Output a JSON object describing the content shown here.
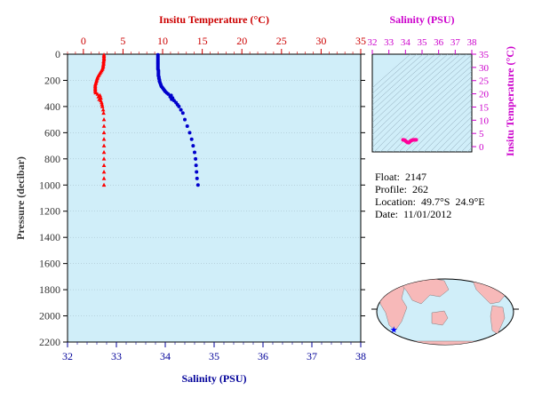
{
  "chart_data": [
    {
      "type": "scatter",
      "top_axis_label": "Insitu Temperature (°C)",
      "bottom_axis_label": "Salinity (PSU)",
      "ylabel": "Pressure (decibar)",
      "temp_ticks": [
        "0",
        "5",
        "10",
        "15",
        "20",
        "25",
        "30",
        "35"
      ],
      "sal_ticks": [
        "32",
        "33",
        "34",
        "35",
        "36",
        "37",
        "38"
      ],
      "pressure_ticks": [
        "0",
        "200",
        "400",
        "600",
        "800",
        "1000",
        "1200",
        "1400",
        "1600",
        "1800",
        "2000",
        "2200"
      ],
      "temp_range": [
        -2,
        35
      ],
      "salinity_range": [
        32,
        38
      ],
      "pressure_range": [
        0,
        2200
      ],
      "colors": {
        "temperature": "#ff0000",
        "salinity": "#0000cc",
        "plot_bg": "#d0eef9",
        "temp_axis": "#cc0000",
        "sal_axis": "#000099",
        "pressure_axis": "#333333"
      },
      "series": [
        {
          "name": "Temperature",
          "marker": "triangle",
          "points": [
            {
              "x": 2.6,
              "y": 5
            },
            {
              "x": 2.6,
              "y": 15
            },
            {
              "x": 2.6,
              "y": 25
            },
            {
              "x": 2.6,
              "y": 35
            },
            {
              "x": 2.6,
              "y": 45
            },
            {
              "x": 2.55,
              "y": 55
            },
            {
              "x": 2.55,
              "y": 65
            },
            {
              "x": 2.55,
              "y": 75
            },
            {
              "x": 2.5,
              "y": 85
            },
            {
              "x": 2.5,
              "y": 95
            },
            {
              "x": 2.45,
              "y": 105
            },
            {
              "x": 2.4,
              "y": 115
            },
            {
              "x": 2.3,
              "y": 125
            },
            {
              "x": 2.2,
              "y": 135
            },
            {
              "x": 2.1,
              "y": 145
            },
            {
              "x": 2.0,
              "y": 155
            },
            {
              "x": 1.9,
              "y": 165
            },
            {
              "x": 1.8,
              "y": 175
            },
            {
              "x": 1.75,
              "y": 185
            },
            {
              "x": 1.7,
              "y": 195
            },
            {
              "x": 1.65,
              "y": 205
            },
            {
              "x": 1.6,
              "y": 215
            },
            {
              "x": 1.55,
              "y": 225
            },
            {
              "x": 1.5,
              "y": 235
            },
            {
              "x": 1.5,
              "y": 245
            },
            {
              "x": 1.5,
              "y": 255
            },
            {
              "x": 1.5,
              "y": 265
            },
            {
              "x": 1.5,
              "y": 275
            },
            {
              "x": 1.5,
              "y": 285
            },
            {
              "x": 1.55,
              "y": 295
            },
            {
              "x": 1.8,
              "y": 305
            },
            {
              "x": 2.1,
              "y": 315
            },
            {
              "x": 1.9,
              "y": 325
            },
            {
              "x": 2.2,
              "y": 335
            },
            {
              "x": 2.0,
              "y": 345
            },
            {
              "x": 2.2,
              "y": 355
            },
            {
              "x": 2.3,
              "y": 370
            },
            {
              "x": 2.35,
              "y": 385
            },
            {
              "x": 2.4,
              "y": 400
            },
            {
              "x": 2.5,
              "y": 425
            },
            {
              "x": 2.55,
              "y": 450
            },
            {
              "x": 2.6,
              "y": 500
            },
            {
              "x": 2.6,
              "y": 550
            },
            {
              "x": 2.6,
              "y": 600
            },
            {
              "x": 2.6,
              "y": 650
            },
            {
              "x": 2.6,
              "y": 700
            },
            {
              "x": 2.6,
              "y": 750
            },
            {
              "x": 2.6,
              "y": 800
            },
            {
              "x": 2.6,
              "y": 850
            },
            {
              "x": 2.6,
              "y": 900
            },
            {
              "x": 2.6,
              "y": 950
            },
            {
              "x": 2.6,
              "y": 1000
            }
          ]
        },
        {
          "name": "Salinity",
          "marker": "circle",
          "points": [
            {
              "x": 33.85,
              "y": 5
            },
            {
              "x": 33.85,
              "y": 15
            },
            {
              "x": 33.85,
              "y": 25
            },
            {
              "x": 33.85,
              "y": 35
            },
            {
              "x": 33.85,
              "y": 45
            },
            {
              "x": 33.85,
              "y": 55
            },
            {
              "x": 33.85,
              "y": 65
            },
            {
              "x": 33.85,
              "y": 75
            },
            {
              "x": 33.85,
              "y": 85
            },
            {
              "x": 33.85,
              "y": 95
            },
            {
              "x": 33.85,
              "y": 105
            },
            {
              "x": 33.85,
              "y": 115
            },
            {
              "x": 33.86,
              "y": 125
            },
            {
              "x": 33.86,
              "y": 135
            },
            {
              "x": 33.86,
              "y": 145
            },
            {
              "x": 33.86,
              "y": 155
            },
            {
              "x": 33.86,
              "y": 165
            },
            {
              "x": 33.87,
              "y": 175
            },
            {
              "x": 33.87,
              "y": 185
            },
            {
              "x": 33.88,
              "y": 195
            },
            {
              "x": 33.88,
              "y": 205
            },
            {
              "x": 33.89,
              "y": 215
            },
            {
              "x": 33.9,
              "y": 225
            },
            {
              "x": 33.91,
              "y": 235
            },
            {
              "x": 33.92,
              "y": 245
            },
            {
              "x": 33.94,
              "y": 255
            },
            {
              "x": 33.96,
              "y": 265
            },
            {
              "x": 33.98,
              "y": 275
            },
            {
              "x": 34.0,
              "y": 285
            },
            {
              "x": 34.03,
              "y": 295
            },
            {
              "x": 34.06,
              "y": 305
            },
            {
              "x": 34.12,
              "y": 315
            },
            {
              "x": 34.1,
              "y": 325
            },
            {
              "x": 34.15,
              "y": 335
            },
            {
              "x": 34.13,
              "y": 345
            },
            {
              "x": 34.18,
              "y": 355
            },
            {
              "x": 34.22,
              "y": 370
            },
            {
              "x": 34.25,
              "y": 385
            },
            {
              "x": 34.28,
              "y": 400
            },
            {
              "x": 34.32,
              "y": 425
            },
            {
              "x": 34.36,
              "y": 450
            },
            {
              "x": 34.4,
              "y": 500
            },
            {
              "x": 34.45,
              "y": 550
            },
            {
              "x": 34.5,
              "y": 600
            },
            {
              "x": 34.54,
              "y": 650
            },
            {
              "x": 34.57,
              "y": 700
            },
            {
              "x": 34.6,
              "y": 750
            },
            {
              "x": 34.62,
              "y": 800
            },
            {
              "x": 34.63,
              "y": 850
            },
            {
              "x": 34.64,
              "y": 900
            },
            {
              "x": 34.65,
              "y": 950
            },
            {
              "x": 34.67,
              "y": 1000
            }
          ]
        }
      ]
    },
    {
      "type": "scatter",
      "title": "Salinity (PSU)",
      "ylabel": "Insitu Temperature (°C)",
      "x_ticks": [
        "32",
        "33",
        "34",
        "35",
        "36",
        "37",
        "38"
      ],
      "y_ticks": [
        "0",
        "5",
        "10",
        "15",
        "20",
        "25",
        "30",
        "35"
      ],
      "xlim": [
        32,
        38
      ],
      "ylim": [
        -2,
        35
      ],
      "colors": {
        "axis": "#cc00cc",
        "points": "#ff0099",
        "contours": "#8aa4b4",
        "bg": "#d0eef9"
      },
      "points": [
        {
          "x": 33.85,
          "y": 2.6
        },
        {
          "x": 33.9,
          "y": 2.55
        },
        {
          "x": 33.95,
          "y": 2.45
        },
        {
          "x": 34.0,
          "y": 2.2
        },
        {
          "x": 34.05,
          "y": 1.9
        },
        {
          "x": 34.1,
          "y": 1.7
        },
        {
          "x": 34.15,
          "y": 1.55
        },
        {
          "x": 34.2,
          "y": 1.5
        },
        {
          "x": 34.25,
          "y": 1.8
        },
        {
          "x": 34.3,
          "y": 2.1
        },
        {
          "x": 34.35,
          "y": 2.3
        },
        {
          "x": 34.4,
          "y": 2.45
        },
        {
          "x": 34.45,
          "y": 2.55
        },
        {
          "x": 34.5,
          "y": 2.6
        },
        {
          "x": 34.55,
          "y": 2.6
        },
        {
          "x": 34.6,
          "y": 2.6
        },
        {
          "x": 34.65,
          "y": 2.6
        }
      ]
    }
  ],
  "info": {
    "float_line": "Float:  2147",
    "profile_line": "Profile:  262",
    "location_line": "Location:  49.7°S  24.9°E",
    "date_line": "Date:  11/01/2012"
  },
  "map": {
    "colors": {
      "ocean": "#d0eef9",
      "land": "#f7b9b9",
      "marker": "#0000ff"
    },
    "marker_lat": -49.7,
    "marker_lon": 24.9
  }
}
